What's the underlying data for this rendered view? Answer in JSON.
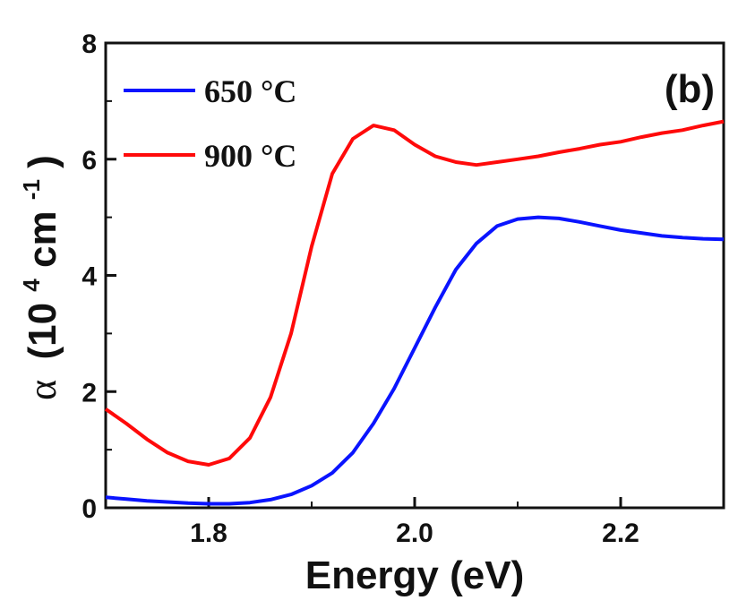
{
  "chart_data": {
    "type": "line",
    "panel_label": "(b)",
    "xlabel": "Energy (eV)",
    "ylabel": {
      "symbol": "α",
      "text": "(10",
      "exp1": "4",
      "unit": " cm",
      "exp2": "-1",
      "close": ")"
    },
    "xlim": [
      1.7,
      2.3
    ],
    "ylim": [
      0,
      8
    ],
    "x_ticks": [
      {
        "value": 1.8,
        "label": "1.8"
      },
      {
        "value": 2.0,
        "label": "2.0"
      },
      {
        "value": 2.2,
        "label": "2.2"
      }
    ],
    "y_ticks": [
      {
        "value": 0,
        "label": "0"
      },
      {
        "value": 2,
        "label": "2"
      },
      {
        "value": 4,
        "label": "4"
      },
      {
        "value": 6,
        "label": "6"
      },
      {
        "value": 8,
        "label": "8"
      }
    ],
    "x_minor_ticks": [
      1.7,
      1.9,
      2.1,
      2.3
    ],
    "y_minor_ticks": [
      1,
      3,
      5,
      7
    ],
    "legend_position": "top-left",
    "grid": false,
    "series": [
      {
        "name": "650 °C",
        "color": "#0a14ff",
        "x": [
          1.7,
          1.72,
          1.74,
          1.76,
          1.78,
          1.8,
          1.82,
          1.84,
          1.86,
          1.88,
          1.9,
          1.92,
          1.94,
          1.96,
          1.98,
          2.0,
          2.02,
          2.04,
          2.06,
          2.08,
          2.1,
          2.12,
          2.14,
          2.16,
          2.18,
          2.2,
          2.22,
          2.24,
          2.26,
          2.28,
          2.3
        ],
        "y": [
          0.18,
          0.15,
          0.12,
          0.1,
          0.08,
          0.07,
          0.07,
          0.09,
          0.14,
          0.23,
          0.38,
          0.6,
          0.95,
          1.45,
          2.05,
          2.75,
          3.45,
          4.1,
          4.55,
          4.85,
          4.97,
          5.0,
          4.98,
          4.92,
          4.85,
          4.78,
          4.73,
          4.68,
          4.65,
          4.63,
          4.62
        ]
      },
      {
        "name": "900 °C",
        "color": "#ff0a0a",
        "x": [
          1.7,
          1.72,
          1.74,
          1.76,
          1.78,
          1.8,
          1.82,
          1.84,
          1.86,
          1.88,
          1.9,
          1.92,
          1.94,
          1.96,
          1.98,
          2.0,
          2.02,
          2.04,
          2.06,
          2.08,
          2.1,
          2.12,
          2.14,
          2.16,
          2.18,
          2.2,
          2.22,
          2.24,
          2.26,
          2.28,
          2.3
        ],
        "y": [
          1.7,
          1.45,
          1.18,
          0.95,
          0.8,
          0.74,
          0.85,
          1.2,
          1.9,
          3.0,
          4.5,
          5.75,
          6.35,
          6.58,
          6.5,
          6.25,
          6.05,
          5.95,
          5.9,
          5.95,
          6.0,
          6.05,
          6.12,
          6.18,
          6.25,
          6.3,
          6.38,
          6.45,
          6.5,
          6.58,
          6.65
        ]
      }
    ]
  }
}
